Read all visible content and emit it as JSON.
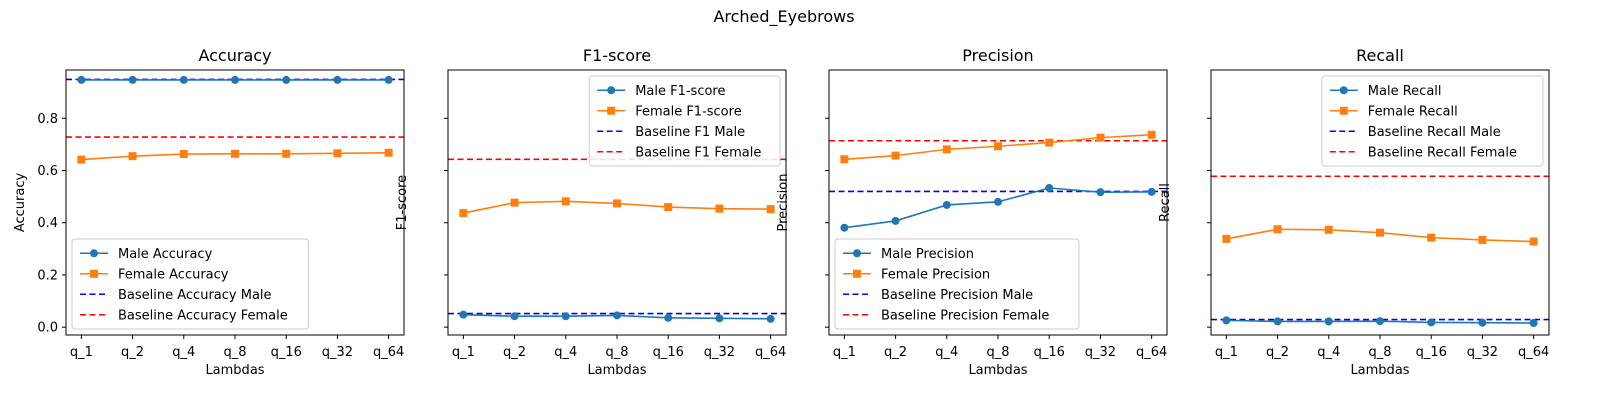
{
  "figure": {
    "suptitle": "Arched_Eyebrows"
  },
  "colors": {
    "male": "#1f77b4",
    "female": "#ff7f0e",
    "baseline_male": "#0000ff",
    "baseline_female": "#ff0000"
  },
  "chart_data": [
    {
      "type": "line",
      "title": "Accuracy",
      "xlabel": "Lambdas",
      "ylabel": "Accuracy",
      "categories": [
        "q_1",
        "q_2",
        "q_4",
        "q_8",
        "q_16",
        "q_32",
        "q_64"
      ],
      "ylim": [
        -0.03,
        0.985
      ],
      "yticks": [
        0.0,
        0.2,
        0.4,
        0.6,
        0.8
      ],
      "ytick_labels": [
        "0.0",
        "0.2",
        "0.4",
        "0.6",
        "0.8"
      ],
      "legend_position": "lower-left",
      "series": [
        {
          "name": "Male Accuracy",
          "values": [
            0.947,
            0.947,
            0.947,
            0.947,
            0.947,
            0.947,
            0.947
          ]
        },
        {
          "name": "Female Accuracy",
          "values": [
            0.642,
            0.655,
            0.663,
            0.664,
            0.664,
            0.666,
            0.668
          ]
        }
      ],
      "baselines": [
        {
          "name": "Baseline Accuracy Male",
          "value": 0.949
        },
        {
          "name": "Baseline Accuracy Female",
          "value": 0.728
        }
      ]
    },
    {
      "type": "line",
      "title": "F1-score",
      "xlabel": "Lambdas",
      "ylabel": "F1-score",
      "categories": [
        "q_1",
        "q_2",
        "q_4",
        "q_8",
        "q_16",
        "q_32",
        "q_64"
      ],
      "ylim": [
        -0.03,
        0.985
      ],
      "yticks": [
        0.0,
        0.2,
        0.4,
        0.6,
        0.8
      ],
      "ytick_labels": [
        "",
        "",
        "",
        "",
        ""
      ],
      "legend_position": "upper-right",
      "series": [
        {
          "name": "Male F1-score",
          "values": [
            0.048,
            0.042,
            0.042,
            0.045,
            0.036,
            0.034,
            0.032
          ]
        },
        {
          "name": "Female F1-score",
          "values": [
            0.437,
            0.477,
            0.482,
            0.474,
            0.46,
            0.454,
            0.452
          ]
        }
      ],
      "baselines": [
        {
          "name": "Baseline F1 Male",
          "value": 0.052
        },
        {
          "name": "Baseline F1 Female",
          "value": 0.643
        }
      ]
    },
    {
      "type": "line",
      "title": "Precision",
      "xlabel": "Lambdas",
      "ylabel": "Precision",
      "categories": [
        "q_1",
        "q_2",
        "q_4",
        "q_8",
        "q_16",
        "q_32",
        "q_64"
      ],
      "ylim": [
        -0.03,
        0.985
      ],
      "yticks": [
        0.0,
        0.2,
        0.4,
        0.6,
        0.8
      ],
      "ytick_labels": [
        "",
        "",
        "",
        "",
        ""
      ],
      "legend_position": "lower-left",
      "series": [
        {
          "name": "Male Precision",
          "values": [
            0.381,
            0.407,
            0.468,
            0.48,
            0.533,
            0.517,
            0.518
          ]
        },
        {
          "name": "Female Precision",
          "values": [
            0.643,
            0.657,
            0.681,
            0.693,
            0.707,
            0.726,
            0.737
          ]
        }
      ],
      "baselines": [
        {
          "name": "Baseline Precision Male",
          "value": 0.52
        },
        {
          "name": "Baseline Precision Female",
          "value": 0.714
        }
      ]
    },
    {
      "type": "line",
      "title": "Recall",
      "xlabel": "Lambdas",
      "ylabel": "Recall",
      "categories": [
        "q_1",
        "q_2",
        "q_4",
        "q_8",
        "q_16",
        "q_32",
        "q_64"
      ],
      "ylim": [
        -0.03,
        0.985
      ],
      "yticks": [
        0.0,
        0.2,
        0.4,
        0.6,
        0.8
      ],
      "ytick_labels": [
        "",
        "",
        "",
        "",
        ""
      ],
      "legend_position": "upper-right",
      "series": [
        {
          "name": "Male Recall",
          "values": [
            0.026,
            0.022,
            0.022,
            0.023,
            0.018,
            0.017,
            0.016
          ]
        },
        {
          "name": "Female Recall",
          "values": [
            0.338,
            0.375,
            0.373,
            0.362,
            0.343,
            0.334,
            0.328
          ]
        }
      ],
      "baselines": [
        {
          "name": "Baseline Recall Male",
          "value": 0.029
        },
        {
          "name": "Baseline Recall Female",
          "value": 0.578
        }
      ]
    }
  ]
}
